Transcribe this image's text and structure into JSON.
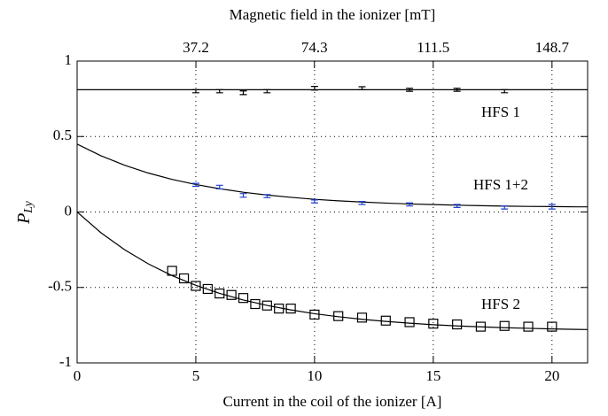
{
  "chart_data": {
    "type": "scatter",
    "x_label": "Current in the coil of the ionizer [A]",
    "x2_label": "Magnetic field in the ionizer [mT]",
    "y_label": {
      "main": "P",
      "sub": "Ly"
    },
    "xlim": [
      0,
      21.5
    ],
    "xticks": [
      0,
      5,
      10,
      15,
      20
    ],
    "x2lim": [
      0,
      159.85
    ],
    "x2ticks": [
      37.2,
      74.3,
      111.5,
      148.7
    ],
    "ylim": [
      -1,
      1
    ],
    "yticks": [
      -1,
      -0.5,
      0,
      0.5,
      1
    ],
    "grid": true,
    "series": [
      {
        "name": "HFS 1",
        "color": "#000000",
        "marker": "errorbar",
        "x": [
          5,
          6,
          7,
          8,
          10,
          12,
          14,
          16,
          18
        ],
        "values": [
          0.8,
          0.8,
          0.79,
          0.8,
          0.82,
          0.82,
          0.81,
          0.81,
          0.8
        ],
        "errors": [
          0.01,
          0.01,
          0.012,
          0.01,
          0.012,
          0.01,
          0.01,
          0.01,
          0.01
        ]
      },
      {
        "name": "HFS 1+2",
        "color": "#1f3fd0",
        "marker": "errorbar",
        "x": [
          5,
          6,
          7,
          8,
          10,
          12,
          14,
          16,
          18,
          20
        ],
        "values": [
          0.18,
          0.165,
          0.11,
          0.105,
          0.07,
          0.06,
          0.05,
          0.04,
          0.03,
          0.035
        ],
        "errors": [
          0.01,
          0.012,
          0.012,
          0.01,
          0.01,
          0.01,
          0.01,
          0.01,
          0.01,
          0.015
        ]
      },
      {
        "name": "HFS 2",
        "color": "#000000",
        "marker": "square",
        "x": [
          4,
          4.5,
          5,
          5.5,
          6,
          6.5,
          7,
          7.5,
          8,
          8.5,
          9,
          10,
          11,
          12,
          13,
          14,
          15,
          16,
          17,
          18,
          19,
          20
        ],
        "values": [
          -0.39,
          -0.44,
          -0.49,
          -0.51,
          -0.54,
          -0.55,
          -0.57,
          -0.61,
          -0.62,
          -0.64,
          -0.64,
          -0.68,
          -0.69,
          -0.7,
          -0.72,
          -0.73,
          -0.74,
          -0.745,
          -0.76,
          -0.755,
          -0.76,
          -0.76
        ]
      }
    ],
    "fits": [
      {
        "color": "#000000",
        "x": [
          0,
          21.5
        ],
        "values": [
          0.81,
          0.81
        ]
      },
      {
        "color": "#000000",
        "x": [
          0,
          1,
          2,
          3,
          4,
          5,
          6,
          7,
          8,
          9,
          10,
          11,
          12,
          13,
          14,
          15,
          16,
          17,
          18,
          19,
          20,
          21,
          21.5
        ],
        "values": [
          0.45,
          0.373,
          0.31,
          0.258,
          0.216,
          0.182,
          0.154,
          0.131,
          0.112,
          0.097,
          0.084,
          0.074,
          0.066,
          0.059,
          0.053,
          0.049,
          0.045,
          0.042,
          0.039,
          0.037,
          0.036,
          0.034,
          0.034
        ]
      },
      {
        "color": "#000000",
        "x": [
          0,
          1,
          2,
          3,
          4,
          5,
          6,
          7,
          8,
          9,
          10,
          11,
          12,
          13,
          14,
          15,
          16,
          17,
          18,
          19,
          20,
          21,
          21.5
        ],
        "values": [
          0,
          -0.137,
          -0.25,
          -0.344,
          -0.422,
          -0.486,
          -0.539,
          -0.583,
          -0.619,
          -0.649,
          -0.674,
          -0.694,
          -0.711,
          -0.725,
          -0.737,
          -0.747,
          -0.755,
          -0.761,
          -0.767,
          -0.771,
          -0.775,
          -0.778,
          -0.779
        ]
      }
    ]
  }
}
